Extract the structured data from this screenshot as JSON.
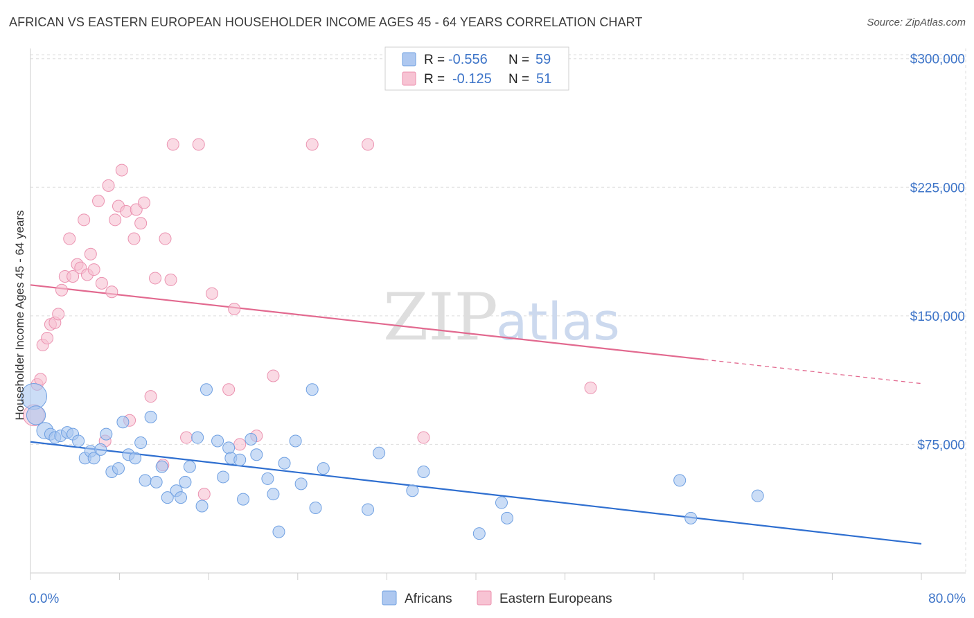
{
  "title": "AFRICAN VS EASTERN EUROPEAN HOUSEHOLDER INCOME AGES 45 - 64 YEARS CORRELATION CHART",
  "source": "Source: ZipAtlas.com",
  "watermark": {
    "zip": "ZIP",
    "atlas": "atlas"
  },
  "legend_top": [
    {
      "r_label": "R =",
      "r_value": "-0.556",
      "n_label": "N =",
      "n_value": "59",
      "color": "#aec8f0",
      "stroke": "#6f9fe0"
    },
    {
      "r_label": "R =",
      "r_value": "-0.125",
      "n_label": "N =",
      "n_value": "51",
      "color": "#f7c3d3",
      "stroke": "#ec8fad"
    }
  ],
  "legend_bottom": [
    {
      "label": "Africans",
      "color": "#aec8f0",
      "stroke": "#6f9fe0"
    },
    {
      "label": "Eastern Europeans",
      "color": "#f7c3d3",
      "stroke": "#ec8fad"
    }
  ],
  "colors": {
    "africans_fill": "#a9c6f0",
    "africans_stroke": "#6fa0e2",
    "africans_line": "#2f6fd0",
    "eastern_fill": "#f7c2d2",
    "eastern_stroke": "#eb92b0",
    "eastern_line": "#e2698f",
    "axis_text": "#3d74c8",
    "grid": "#dddddd"
  },
  "chart_data": {
    "type": "scatter",
    "title": "AFRICAN VS EASTERN EUROPEAN HOUSEHOLDER INCOME AGES 45 - 64 YEARS CORRELATION CHART",
    "xlabel": "",
    "ylabel": "Householder Income Ages 45 - 64 years",
    "xlim": [
      0,
      80
    ],
    "ylim": [
      0,
      310000
    ],
    "x_tick_labels": [
      "0.0%",
      "80.0%"
    ],
    "y_ticks": [
      75000,
      150000,
      225000,
      300000
    ],
    "y_tick_labels": [
      "$75,000",
      "$150,000",
      "$225,000",
      "$300,000"
    ],
    "grid": true,
    "legend_position": "top-center",
    "series": [
      {
        "name": "Africans",
        "r": -0.556,
        "n": 59,
        "trend": {
          "x": [
            0,
            80
          ],
          "y": [
            76500,
            17000
          ]
        },
        "points": [
          [
            0.3,
            103000,
            2.2
          ],
          [
            0.5,
            92000,
            1.6
          ],
          [
            1.3,
            83000,
            1.4
          ],
          [
            1.8,
            81000,
            1
          ],
          [
            2.2,
            79000,
            1
          ],
          [
            2.7,
            80000,
            1
          ],
          [
            3.3,
            82000,
            1
          ],
          [
            3.8,
            81000,
            1
          ],
          [
            4.3,
            77000,
            1
          ],
          [
            4.9,
            67000,
            1
          ],
          [
            5.4,
            71000,
            1
          ],
          [
            5.7,
            67000,
            1
          ],
          [
            6.3,
            72000,
            1
          ],
          [
            6.8,
            81000,
            1
          ],
          [
            7.3,
            59000,
            1
          ],
          [
            7.9,
            61000,
            1
          ],
          [
            8.3,
            88000,
            1
          ],
          [
            8.8,
            69000,
            1
          ],
          [
            9.4,
            67000,
            1
          ],
          [
            9.9,
            76000,
            1
          ],
          [
            10.3,
            54000,
            1
          ],
          [
            10.8,
            91000,
            1
          ],
          [
            11.3,
            53000,
            1
          ],
          [
            11.8,
            62000,
            1
          ],
          [
            12.3,
            44000,
            1
          ],
          [
            13.1,
            48000,
            1
          ],
          [
            13.5,
            44000,
            1
          ],
          [
            13.9,
            53000,
            1
          ],
          [
            14.3,
            62000,
            1
          ],
          [
            15.0,
            79000,
            1
          ],
          [
            15.4,
            39000,
            1
          ],
          [
            15.8,
            107000,
            1
          ],
          [
            16.8,
            77000,
            1
          ],
          [
            17.3,
            56000,
            1
          ],
          [
            17.8,
            73000,
            1
          ],
          [
            18.0,
            67000,
            1
          ],
          [
            18.8,
            66000,
            1
          ],
          [
            19.1,
            43000,
            1
          ],
          [
            19.8,
            78000,
            1
          ],
          [
            20.3,
            69000,
            1
          ],
          [
            21.3,
            55000,
            1
          ],
          [
            21.8,
            46000,
            1
          ],
          [
            22.3,
            24000,
            1
          ],
          [
            22.8,
            64000,
            1
          ],
          [
            23.8,
            77000,
            1
          ],
          [
            24.3,
            52000,
            1
          ],
          [
            25.3,
            107000,
            1
          ],
          [
            25.6,
            38000,
            1
          ],
          [
            26.3,
            61000,
            1
          ],
          [
            30.3,
            37000,
            1
          ],
          [
            31.3,
            70000,
            1
          ],
          [
            34.3,
            48000,
            1
          ],
          [
            35.3,
            59000,
            1
          ],
          [
            40.3,
            23000,
            1
          ],
          [
            42.3,
            41000,
            1
          ],
          [
            42.8,
            32000,
            1
          ],
          [
            58.3,
            54000,
            1
          ],
          [
            59.3,
            32000,
            1
          ],
          [
            65.3,
            45000,
            1
          ]
        ]
      },
      {
        "name": "Eastern Europeans",
        "r": -0.125,
        "n": 51,
        "trend": {
          "x": [
            0,
            60.5
          ],
          "y": [
            168000,
            124500
          ],
          "dashed_to": {
            "x": 80,
            "y": 110500
          }
        },
        "points": [
          [
            0.3,
            92000,
            1.8
          ],
          [
            0.6,
            110000,
            1
          ],
          [
            0.9,
            113000,
            1
          ],
          [
            1.1,
            133000,
            1
          ],
          [
            1.5,
            137000,
            1
          ],
          [
            1.8,
            145000,
            1
          ],
          [
            2.2,
            146000,
            1
          ],
          [
            2.5,
            151000,
            1
          ],
          [
            2.8,
            165000,
            1
          ],
          [
            3.1,
            173000,
            1
          ],
          [
            3.5,
            195000,
            1
          ],
          [
            3.8,
            173000,
            1
          ],
          [
            4.2,
            180000,
            1
          ],
          [
            4.5,
            178000,
            1
          ],
          [
            4.8,
            206000,
            1
          ],
          [
            5.1,
            174000,
            1
          ],
          [
            5.4,
            186000,
            1
          ],
          [
            5.7,
            177000,
            1
          ],
          [
            6.1,
            217000,
            1
          ],
          [
            6.4,
            169000,
            1
          ],
          [
            6.7,
            77000,
            1
          ],
          [
            7.0,
            226000,
            1
          ],
          [
            7.3,
            164000,
            1
          ],
          [
            7.6,
            206000,
            1
          ],
          [
            7.9,
            214000,
            1
          ],
          [
            8.2,
            235000,
            1
          ],
          [
            8.6,
            211000,
            1
          ],
          [
            8.9,
            89000,
            1
          ],
          [
            9.3,
            195000,
            1
          ],
          [
            9.5,
            212000,
            1
          ],
          [
            9.9,
            204000,
            1
          ],
          [
            10.2,
            216000,
            1
          ],
          [
            10.8,
            103000,
            1
          ],
          [
            11.2,
            172000,
            1
          ],
          [
            11.9,
            63000,
            1
          ],
          [
            12.1,
            195000,
            1
          ],
          [
            12.6,
            171000,
            1
          ],
          [
            12.8,
            250000,
            1
          ],
          [
            14.0,
            79000,
            1
          ],
          [
            15.1,
            250000,
            1
          ],
          [
            15.6,
            46000,
            1
          ],
          [
            16.3,
            163000,
            1
          ],
          [
            17.8,
            107000,
            1
          ],
          [
            18.3,
            154000,
            1
          ],
          [
            18.8,
            75000,
            1
          ],
          [
            20.3,
            80000,
            1
          ],
          [
            21.8,
            115000,
            1
          ],
          [
            25.3,
            250000,
            1
          ],
          [
            30.3,
            250000,
            1
          ],
          [
            35.3,
            79000,
            1
          ],
          [
            50.3,
            108000,
            1
          ]
        ]
      }
    ]
  }
}
